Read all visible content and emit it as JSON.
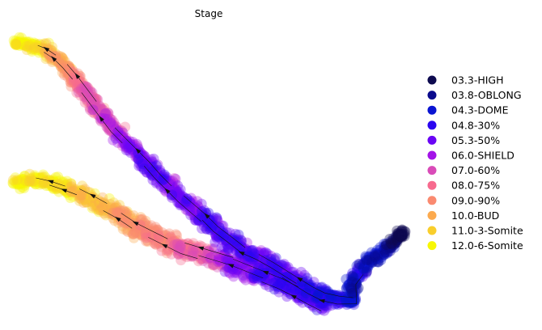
{
  "chart_data": {
    "type": "scatter",
    "subtype": "embedding scatter with velocity stream arrows",
    "title": "Stage",
    "xlabel": "",
    "ylabel": "",
    "axes_visible": false,
    "grid": false,
    "legend_position": "right",
    "series": [
      {
        "name": "03.3-HIGH",
        "color": "#0d0a4f"
      },
      {
        "name": "03.8-OBLONG",
        "color": "#0a0a8c"
      },
      {
        "name": "04.3-DOME",
        "color": "#0a14d2"
      },
      {
        "name": "04.8-30%",
        "color": "#2a05f0"
      },
      {
        "name": "05.3-50%",
        "color": "#6a05f5"
      },
      {
        "name": "06.0-SHIELD",
        "color": "#a313e8"
      },
      {
        "name": "07.0-60%",
        "color": "#d94bb8"
      },
      {
        "name": "08.0-75%",
        "color": "#f76a8e"
      },
      {
        "name": "09.0-90%",
        "color": "#fa8a70"
      },
      {
        "name": "10.0-BUD",
        "color": "#fcaa4e"
      },
      {
        "name": "11.0-3-Somite",
        "color": "#f9ce2c"
      },
      {
        "name": "12.0-6-Somite",
        "color": "#f7f704"
      }
    ]
  }
}
